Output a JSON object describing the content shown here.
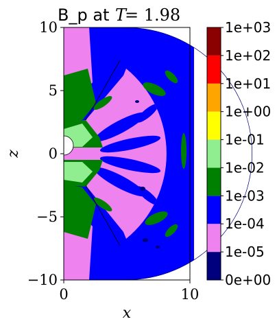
{
  "chart_data": {
    "type": "heatmap",
    "title_prefix": "B_p at ",
    "title_var": "T",
    "title_eq": " = 1.98",
    "xlabel": "x",
    "ylabel": "z",
    "xlim": [
      0,
      10
    ],
    "ylim": [
      -10,
      10
    ],
    "xticks": [
      {
        "value": 0,
        "label": "0"
      },
      {
        "value": 10,
        "label": "10"
      }
    ],
    "yticks": [
      {
        "value": 10,
        "label": "10"
      },
      {
        "value": 5,
        "label": "5"
      },
      {
        "value": 0,
        "label": "0"
      },
      {
        "value": -5,
        "label": "−5"
      },
      {
        "value": -10,
        "label": "−10"
      }
    ],
    "colorbar": {
      "levels": [
        {
          "label": "0e+00",
          "color": "#00007f"
        },
        {
          "label": "1e-05",
          "color": "#ee82ee"
        },
        {
          "label": "1e-04",
          "color": "#0000ff"
        },
        {
          "label": "1e-03",
          "color": "#008000"
        },
        {
          "label": "1e-02",
          "color": "#90ee90"
        },
        {
          "label": "1e-01",
          "color": "#ffff00"
        },
        {
          "label": "1e+00",
          "color": "#ffa500"
        },
        {
          "label": "1e+01",
          "color": "#ff0000"
        },
        {
          "label": "1e+02",
          "color": "#8b0000"
        },
        {
          "label": "1e+03",
          "color": ""
        }
      ]
    },
    "grid": false
  }
}
